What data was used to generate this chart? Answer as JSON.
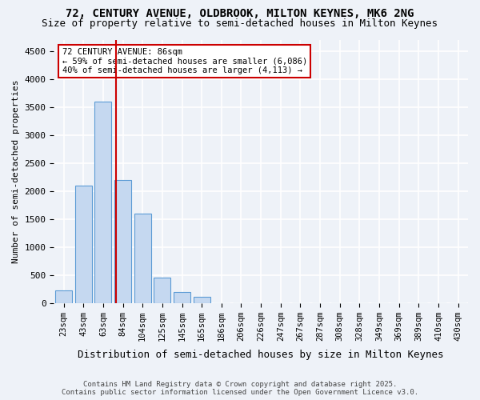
{
  "title_line1": "72, CENTURY AVENUE, OLDBROOK, MILTON KEYNES, MK6 2NG",
  "title_line2": "Size of property relative to semi-detached houses in Milton Keynes",
  "xlabel": "Distribution of semi-detached houses by size in Milton Keynes",
  "ylabel": "Number of semi-detached properties",
  "footer_line1": "Contains HM Land Registry data © Crown copyright and database right 2025.",
  "footer_line2": "Contains public sector information licensed under the Open Government Licence v3.0.",
  "annotation_title": "72 CENTURY AVENUE: 86sqm",
  "annotation_line2": "← 59% of semi-detached houses are smaller (6,086)",
  "annotation_line3": "40% of semi-detached houses are larger (4,113) →",
  "property_size": 86,
  "categories": [
    "23sqm",
    "43sqm",
    "63sqm",
    "84sqm",
    "104sqm",
    "125sqm",
    "145sqm",
    "165sqm",
    "186sqm",
    "206sqm",
    "226sqm",
    "247sqm",
    "267sqm",
    "287sqm",
    "308sqm",
    "328sqm",
    "349sqm",
    "369sqm",
    "389sqm",
    "410sqm",
    "430sqm"
  ],
  "bar_values": [
    230,
    2100,
    3600,
    2200,
    1600,
    450,
    200,
    110,
    0,
    0,
    0,
    0,
    0,
    0,
    0,
    0,
    0,
    0,
    0,
    0,
    0
  ],
  "bar_color": "#c5d8f0",
  "bar_edge_color": "#5b9bd5",
  "background_color": "#eef2f8",
  "plot_bg_color": "#eef2f8",
  "grid_color": "#ffffff",
  "red_line_color": "#cc0000",
  "annotation_box_color": "#cc0000",
  "ylim": [
    0,
    4700
  ],
  "yticks": [
    0,
    500,
    1000,
    1500,
    2000,
    2500,
    3000,
    3500,
    4000,
    4500
  ]
}
